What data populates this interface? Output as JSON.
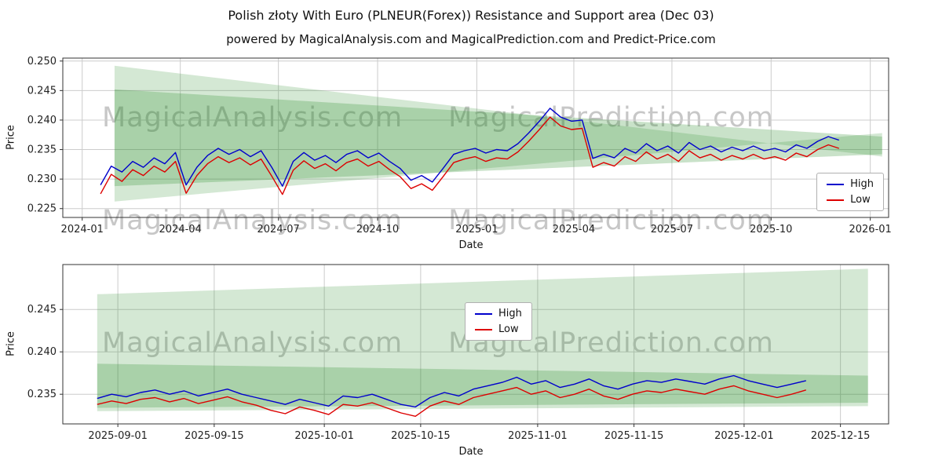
{
  "title": "Polish złoty With Euro (PLNEUR(Forex)) Resistance and Support area (Dec 03)",
  "subtitle": "powered by MagicalAnalysis.com and MagicalPrediction.com and Predict-Price.com",
  "watermarks": {
    "analysis": "MagicalAnalysis.com",
    "prediction": "MagicalPrediction.com"
  },
  "colors": {
    "high": "#0000cc",
    "low": "#dd0000",
    "band": "40,140,40",
    "grid": "#cccccc",
    "spine": "#333333"
  },
  "chart_data": [
    {
      "type": "line",
      "id": "top",
      "xlabel": "Date",
      "ylabel": "Price",
      "xlim": [
        -18,
        748
      ],
      "ylim": [
        0.2235,
        0.2505
      ],
      "box": {
        "l": 80,
        "r": 1132,
        "t": 12,
        "b": 215
      },
      "xticks": [
        {
          "v": 0,
          "label": "2024-01"
        },
        {
          "v": 91,
          "label": "2024-04"
        },
        {
          "v": 182,
          "label": "2024-07"
        },
        {
          "v": 274,
          "label": "2024-10"
        },
        {
          "v": 366,
          "label": "2025-01"
        },
        {
          "v": 456,
          "label": "2025-04"
        },
        {
          "v": 547,
          "label": "2025-07"
        },
        {
          "v": 639,
          "label": "2025-10"
        },
        {
          "v": 731,
          "label": "2026-01"
        }
      ],
      "yticks": [
        0.225,
        0.23,
        0.235,
        0.24,
        0.245,
        0.25
      ],
      "bands": [
        {
          "x": [
            30,
            742
          ],
          "top": [
            0.2492,
            0.2338
          ],
          "bottom": [
            0.2262,
            0.2378
          ],
          "alpha": 0.2
        },
        {
          "x": [
            30,
            742
          ],
          "top": [
            0.2452,
            0.2372
          ],
          "bottom": [
            0.2288,
            0.2342
          ],
          "alpha": 0.25
        }
      ],
      "series": [
        {
          "name": "High",
          "color": "high",
          "x0": 17,
          "x1": 702,
          "values": [
            0.229,
            0.2322,
            0.2312,
            0.233,
            0.232,
            0.2336,
            0.2326,
            0.2345,
            0.229,
            0.232,
            0.234,
            0.2352,
            0.2342,
            0.235,
            0.2338,
            0.2348,
            0.232,
            0.2288,
            0.233,
            0.2345,
            0.2332,
            0.234,
            0.2328,
            0.2342,
            0.2348,
            0.2336,
            0.2344,
            0.233,
            0.2318,
            0.2298,
            0.2306,
            0.2295,
            0.2318,
            0.2342,
            0.2348,
            0.2352,
            0.2344,
            0.235,
            0.2348,
            0.236,
            0.2378,
            0.2398,
            0.242,
            0.2405,
            0.2398,
            0.24,
            0.2335,
            0.2342,
            0.2336,
            0.2352,
            0.2344,
            0.236,
            0.2348,
            0.2356,
            0.2344,
            0.2362,
            0.235,
            0.2356,
            0.2346,
            0.2354,
            0.2348,
            0.2356,
            0.2348,
            0.2352,
            0.2346,
            0.2358,
            0.2352,
            0.2364,
            0.2372,
            0.2366
          ]
        },
        {
          "name": "Low",
          "color": "low",
          "x0": 17,
          "x1": 702,
          "values": [
            0.2275,
            0.2308,
            0.2296,
            0.2316,
            0.2306,
            0.2322,
            0.2312,
            0.233,
            0.2276,
            0.2306,
            0.2326,
            0.2338,
            0.2328,
            0.2336,
            0.2324,
            0.2334,
            0.2305,
            0.2274,
            0.2315,
            0.2331,
            0.2318,
            0.2326,
            0.2314,
            0.2328,
            0.2334,
            0.2322,
            0.233,
            0.2316,
            0.2304,
            0.2284,
            0.2292,
            0.2281,
            0.2304,
            0.2328,
            0.2334,
            0.2338,
            0.233,
            0.2336,
            0.2334,
            0.2346,
            0.2364,
            0.2384,
            0.2405,
            0.239,
            0.2384,
            0.2386,
            0.232,
            0.2328,
            0.2322,
            0.2338,
            0.233,
            0.2346,
            0.2334,
            0.2342,
            0.233,
            0.2348,
            0.2336,
            0.2342,
            0.2332,
            0.234,
            0.2334,
            0.2342,
            0.2334,
            0.2338,
            0.2332,
            0.2344,
            0.2338,
            0.235,
            0.2358,
            0.2352
          ]
        }
      ]
    },
    {
      "type": "line",
      "id": "bottom",
      "xlabel": "Date",
      "ylabel": "Price",
      "xlim": [
        -8,
        112
      ],
      "ylim": [
        0.2315,
        0.2503
      ],
      "box": {
        "l": 80,
        "r": 1132,
        "t": 12,
        "b": 215
      },
      "xticks": [
        {
          "v": 0,
          "label": "2025-09-01"
        },
        {
          "v": 14,
          "label": "2025-09-15"
        },
        {
          "v": 30,
          "label": "2025-10-01"
        },
        {
          "v": 44,
          "label": "2025-10-15"
        },
        {
          "v": 61,
          "label": "2025-11-01"
        },
        {
          "v": 75,
          "label": "2025-11-15"
        },
        {
          "v": 91,
          "label": "2025-12-01"
        },
        {
          "v": 105,
          "label": "2025-12-15"
        }
      ],
      "yticks": [
        0.235,
        0.24,
        0.245
      ],
      "bands": [
        {
          "x": [
            -3,
            109
          ],
          "top": [
            0.2468,
            0.2498
          ],
          "bottom": [
            0.233,
            0.2336
          ],
          "alpha": 0.2
        },
        {
          "x": [
            -3,
            109
          ],
          "top": [
            0.2386,
            0.2372
          ],
          "bottom": [
            0.2334,
            0.234
          ],
          "alpha": 0.25
        }
      ],
      "series": [
        {
          "name": "High",
          "color": "high",
          "x0": -3,
          "x1": 100,
          "values": [
            0.2345,
            0.235,
            0.2347,
            0.2352,
            0.2355,
            0.235,
            0.2354,
            0.2348,
            0.2352,
            0.2356,
            0.235,
            0.2346,
            0.2342,
            0.2338,
            0.2344,
            0.234,
            0.2336,
            0.2348,
            0.2346,
            0.235,
            0.2344,
            0.2338,
            0.2335,
            0.2346,
            0.2352,
            0.2348,
            0.2356,
            0.236,
            0.2364,
            0.237,
            0.2362,
            0.2366,
            0.2358,
            0.2362,
            0.2368,
            0.236,
            0.2356,
            0.2362,
            0.2366,
            0.2364,
            0.2368,
            0.2365,
            0.2362,
            0.2368,
            0.2372,
            0.2366,
            0.2362,
            0.2358,
            0.2362,
            0.2366
          ]
        },
        {
          "name": "Low",
          "color": "low",
          "x0": -3,
          "x1": 100,
          "values": [
            0.2338,
            0.2342,
            0.2339,
            0.2344,
            0.2346,
            0.2341,
            0.2345,
            0.2339,
            0.2343,
            0.2347,
            0.2341,
            0.2337,
            0.2331,
            0.2327,
            0.2335,
            0.2331,
            0.2326,
            0.2338,
            0.2336,
            0.234,
            0.2334,
            0.2328,
            0.2324,
            0.2336,
            0.2342,
            0.2338,
            0.2346,
            0.235,
            0.2354,
            0.2358,
            0.235,
            0.2354,
            0.2346,
            0.235,
            0.2356,
            0.2348,
            0.2344,
            0.235,
            0.2354,
            0.2352,
            0.2356,
            0.2353,
            0.235,
            0.2356,
            0.236,
            0.2354,
            0.235,
            0.2346,
            0.235,
            0.2355
          ]
        }
      ]
    }
  ]
}
